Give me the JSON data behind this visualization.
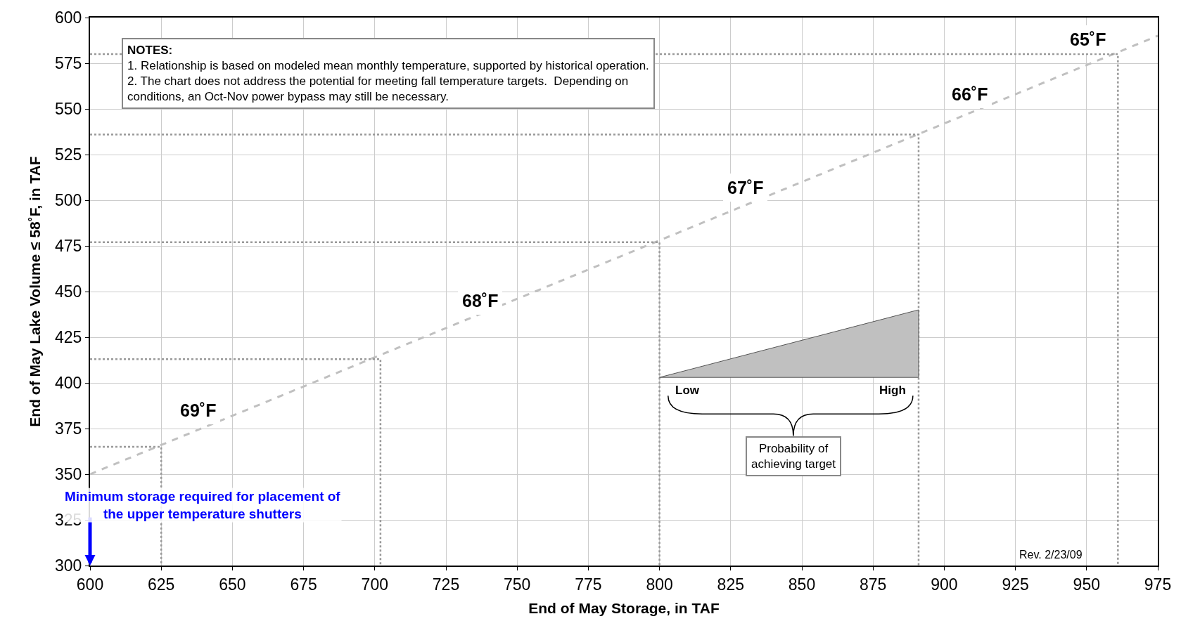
{
  "chart_data": {
    "type": "line",
    "xlabel": "End of May Storage, in TAF",
    "ylabel": "End of May Lake Volume ≤ 58˚F, in TAF",
    "xlim": [
      600,
      975
    ],
    "xticks": [
      600,
      625,
      650,
      675,
      700,
      725,
      750,
      775,
      800,
      825,
      850,
      875,
      900,
      925,
      950,
      975
    ],
    "ylim": [
      300,
      600
    ],
    "yticks": [
      300,
      325,
      350,
      375,
      400,
      425,
      450,
      475,
      500,
      525,
      550,
      575,
      600
    ],
    "grid": true,
    "marker": "none",
    "series": [
      {
        "color": "#c0c0c0",
        "line_style": "dashed",
        "x": [
          600,
          975
        ],
        "values": [
          350,
          590
        ]
      },
      {
        "color": "#999999",
        "line_style": "dotted",
        "x": [
          600,
          625,
          625
        ],
        "values": [
          365,
          365,
          300
        ]
      },
      {
        "color": "#999999",
        "line_style": "dotted",
        "x": [
          600,
          702,
          702
        ],
        "values": [
          413,
          413,
          300
        ]
      },
      {
        "color": "#999999",
        "line_style": "dotted",
        "x": [
          600,
          800,
          800
        ],
        "values": [
          477,
          477,
          300
        ]
      },
      {
        "color": "#999999",
        "line_style": "dotted",
        "x": [
          600,
          891,
          891
        ],
        "values": [
          536,
          536,
          300
        ]
      },
      {
        "color": "#999999",
        "line_style": "dotted",
        "x": [
          600,
          961,
          961
        ],
        "values": [
          580,
          580,
          300
        ]
      },
      {
        "type": "area",
        "color": "#c0c0c0",
        "x": [
          800,
          891,
          891,
          800
        ],
        "values": [
          403,
          440,
          403,
          403
        ]
      }
    ],
    "ref_lines": [
      {
        "axis": "x",
        "value": 600,
        "label": "Minimum storage required for placement of\nthe upper temperature shutters",
        "color": "#0000ff"
      }
    ],
    "annotations": [
      "65˚F",
      "66˚F",
      "67˚F",
      "68˚F",
      "69˚F",
      "NOTES:\n1. Relationship is based on modeled mean monthly temperature, supported by historical operation.\n2. The chart does not address the potential for meeting fall temperature targets.  Depending on\nconditions, an Oct-Nov power bypass may still be necessary.",
      "Low",
      "High",
      "Probability of\nachieving target",
      "Rev. 2/23/09"
    ]
  }
}
